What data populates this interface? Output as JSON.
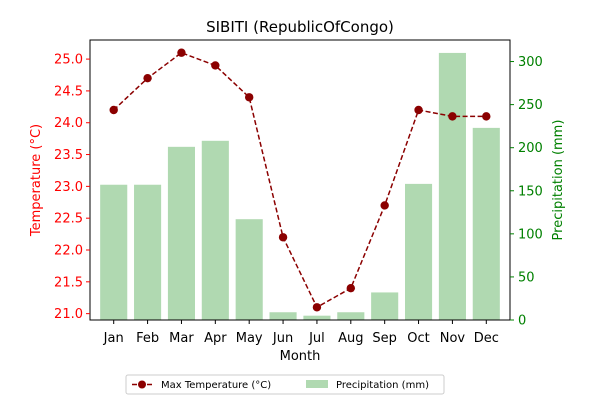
{
  "chart_data": {
    "type": "bar",
    "title": "SIBITI (RepublicOfCongo)",
    "xlabel": "Month",
    "ylabel_left": "Temperature (°C)",
    "ylabel_right": "Precipitation (mm)",
    "categories": [
      "Jan",
      "Feb",
      "Mar",
      "Apr",
      "May",
      "Jun",
      "Jul",
      "Aug",
      "Sep",
      "Oct",
      "Nov",
      "Dec"
    ],
    "series": [
      {
        "name": "Max Temperature (°C)",
        "kind": "line",
        "axis": "left",
        "color": "#8b0000",
        "values": [
          24.2,
          24.7,
          25.1,
          24.9,
          24.4,
          22.2,
          21.1,
          21.4,
          22.7,
          24.2,
          24.1,
          24.1
        ]
      },
      {
        "name": "Precipitation (mm)",
        "kind": "bar",
        "axis": "right",
        "color": "#b0d9b1",
        "values": [
          157,
          157,
          201,
          208,
          117,
          9,
          5,
          9,
          32,
          158,
          310,
          223
        ]
      }
    ],
    "ylim_left": [
      20.9,
      25.3
    ],
    "yticks_left": [
      "21.0",
      "21.5",
      "22.0",
      "22.5",
      "23.0",
      "23.5",
      "24.0",
      "24.5",
      "25.0"
    ],
    "ylim_right": [
      0,
      325
    ],
    "yticks_right": [
      "0",
      "50",
      "100",
      "150",
      "200",
      "250",
      "300"
    ],
    "left_axis_color": "#ff0000",
    "right_axis_color": "#008000",
    "grid": false,
    "legend_position": "bottom-center"
  }
}
